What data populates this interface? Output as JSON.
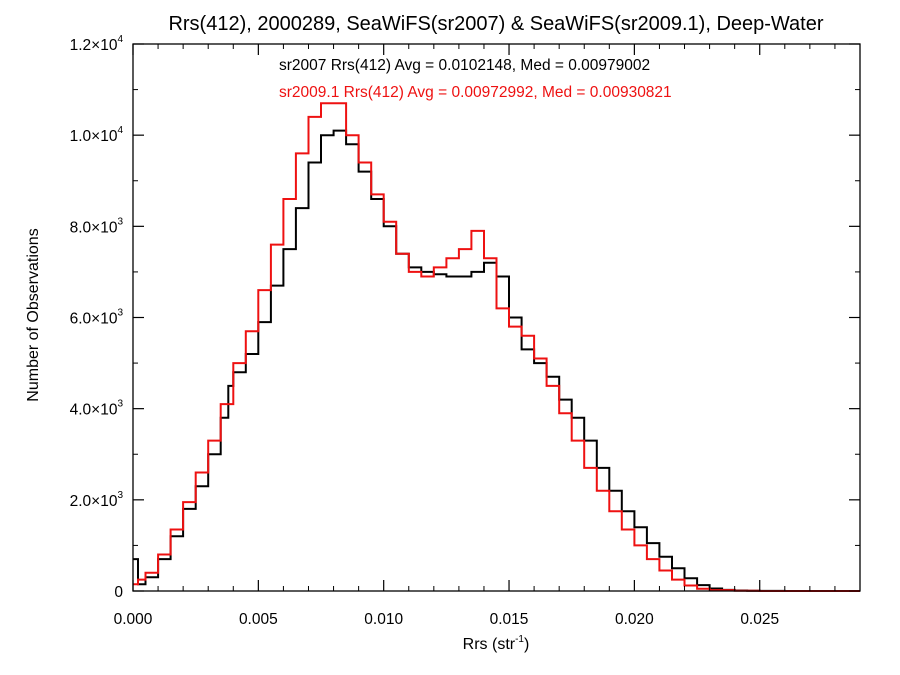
{
  "chart_data": {
    "type": "line",
    "title": "Rrs(412), 2000289, SeaWiFS(sr2007) & SeaWiFS(sr2009.1), Deep-Water",
    "xlabel": "Rrs (str",
    "xlabel_sup": "-1",
    "xlabel_end": ")",
    "ylabel": "Number of Observations",
    "xlim": [
      0.0,
      0.029
    ],
    "ylim": [
      0,
      12000
    ],
    "xticks": [
      0.0,
      0.005,
      0.01,
      0.015,
      0.02,
      0.025
    ],
    "xtick_labels": [
      "0.000",
      "0.005",
      "0.010",
      "0.015",
      "0.020",
      "0.025"
    ],
    "yticks": [
      0,
      2000,
      4000,
      6000,
      8000,
      10000,
      12000
    ],
    "ytick_labels": [
      {
        "mant": "0",
        "exp": ""
      },
      {
        "mant": "2.0×10",
        "exp": "3"
      },
      {
        "mant": "4.0×10",
        "exp": "3"
      },
      {
        "mant": "6.0×10",
        "exp": "3"
      },
      {
        "mant": "8.0×10",
        "exp": "3"
      },
      {
        "mant": "1.0×10",
        "exp": "4"
      },
      {
        "mant": "1.2×10",
        "exp": "4"
      }
    ],
    "annotations": [
      {
        "text": "sr2007 Rrs(412) Avg = 0.0102148, Med = 0.00979002",
        "color": "#000000"
      },
      {
        "text": "sr2009.1 Rrs(412) Avg = 0.00972992, Med = 0.00930821",
        "color": "#ee1111"
      }
    ],
    "grid": false,
    "step": true,
    "series": [
      {
        "name": "sr2007",
        "color": "#000000",
        "x": [
          0.0,
          0.0002,
          0.0005,
          0.001,
          0.0015,
          0.002,
          0.0025,
          0.003,
          0.0035,
          0.0038,
          0.004,
          0.0045,
          0.005,
          0.0055,
          0.006,
          0.0065,
          0.007,
          0.0075,
          0.008,
          0.0085,
          0.009,
          0.0095,
          0.01,
          0.0105,
          0.011,
          0.0115,
          0.012,
          0.0125,
          0.013,
          0.0135,
          0.014,
          0.0145,
          0.015,
          0.0155,
          0.016,
          0.0165,
          0.017,
          0.0175,
          0.018,
          0.0185,
          0.019,
          0.0195,
          0.02,
          0.0205,
          0.021,
          0.0215,
          0.022,
          0.0225,
          0.023,
          0.0235,
          0.024,
          0.0245,
          0.025,
          0.026,
          0.029
        ],
        "y": [
          700,
          150,
          300,
          700,
          1200,
          1800,
          2300,
          3000,
          3800,
          4500,
          4800,
          5200,
          5900,
          6700,
          7500,
          8400,
          9400,
          10000,
          10100,
          9800,
          9200,
          8600,
          8000,
          7400,
          7100,
          7000,
          6950,
          6900,
          6900,
          7000,
          7200,
          6900,
          6000,
          5300,
          5000,
          4700,
          4200,
          3800,
          3300,
          2700,
          2200,
          1750,
          1400,
          1050,
          750,
          500,
          280,
          130,
          55,
          25,
          10,
          5,
          2,
          0,
          0
        ]
      },
      {
        "name": "sr2009.1",
        "color": "#ee1111",
        "x": [
          0.0,
          0.0002,
          0.0005,
          0.001,
          0.0015,
          0.002,
          0.0025,
          0.003,
          0.0035,
          0.004,
          0.0045,
          0.005,
          0.0055,
          0.006,
          0.0065,
          0.007,
          0.0075,
          0.008,
          0.0085,
          0.009,
          0.0095,
          0.01,
          0.0105,
          0.011,
          0.0115,
          0.012,
          0.0125,
          0.013,
          0.0135,
          0.014,
          0.0145,
          0.015,
          0.0155,
          0.016,
          0.0165,
          0.017,
          0.0175,
          0.018,
          0.0185,
          0.019,
          0.0195,
          0.02,
          0.0205,
          0.021,
          0.0215,
          0.022,
          0.0225,
          0.023,
          0.024,
          0.025,
          0.029
        ],
        "y": [
          150,
          250,
          400,
          800,
          1350,
          1950,
          2600,
          3300,
          4100,
          5000,
          5700,
          6600,
          7600,
          8600,
          9600,
          10400,
          10700,
          10700,
          10000,
          9400,
          8700,
          8100,
          7400,
          7000,
          6900,
          7100,
          7300,
          7500,
          7900,
          7300,
          6200,
          5800,
          5600,
          5100,
          4500,
          3900,
          3300,
          2700,
          2200,
          1750,
          1350,
          1000,
          700,
          450,
          250,
          120,
          50,
          20,
          5,
          0,
          0
        ]
      }
    ]
  }
}
